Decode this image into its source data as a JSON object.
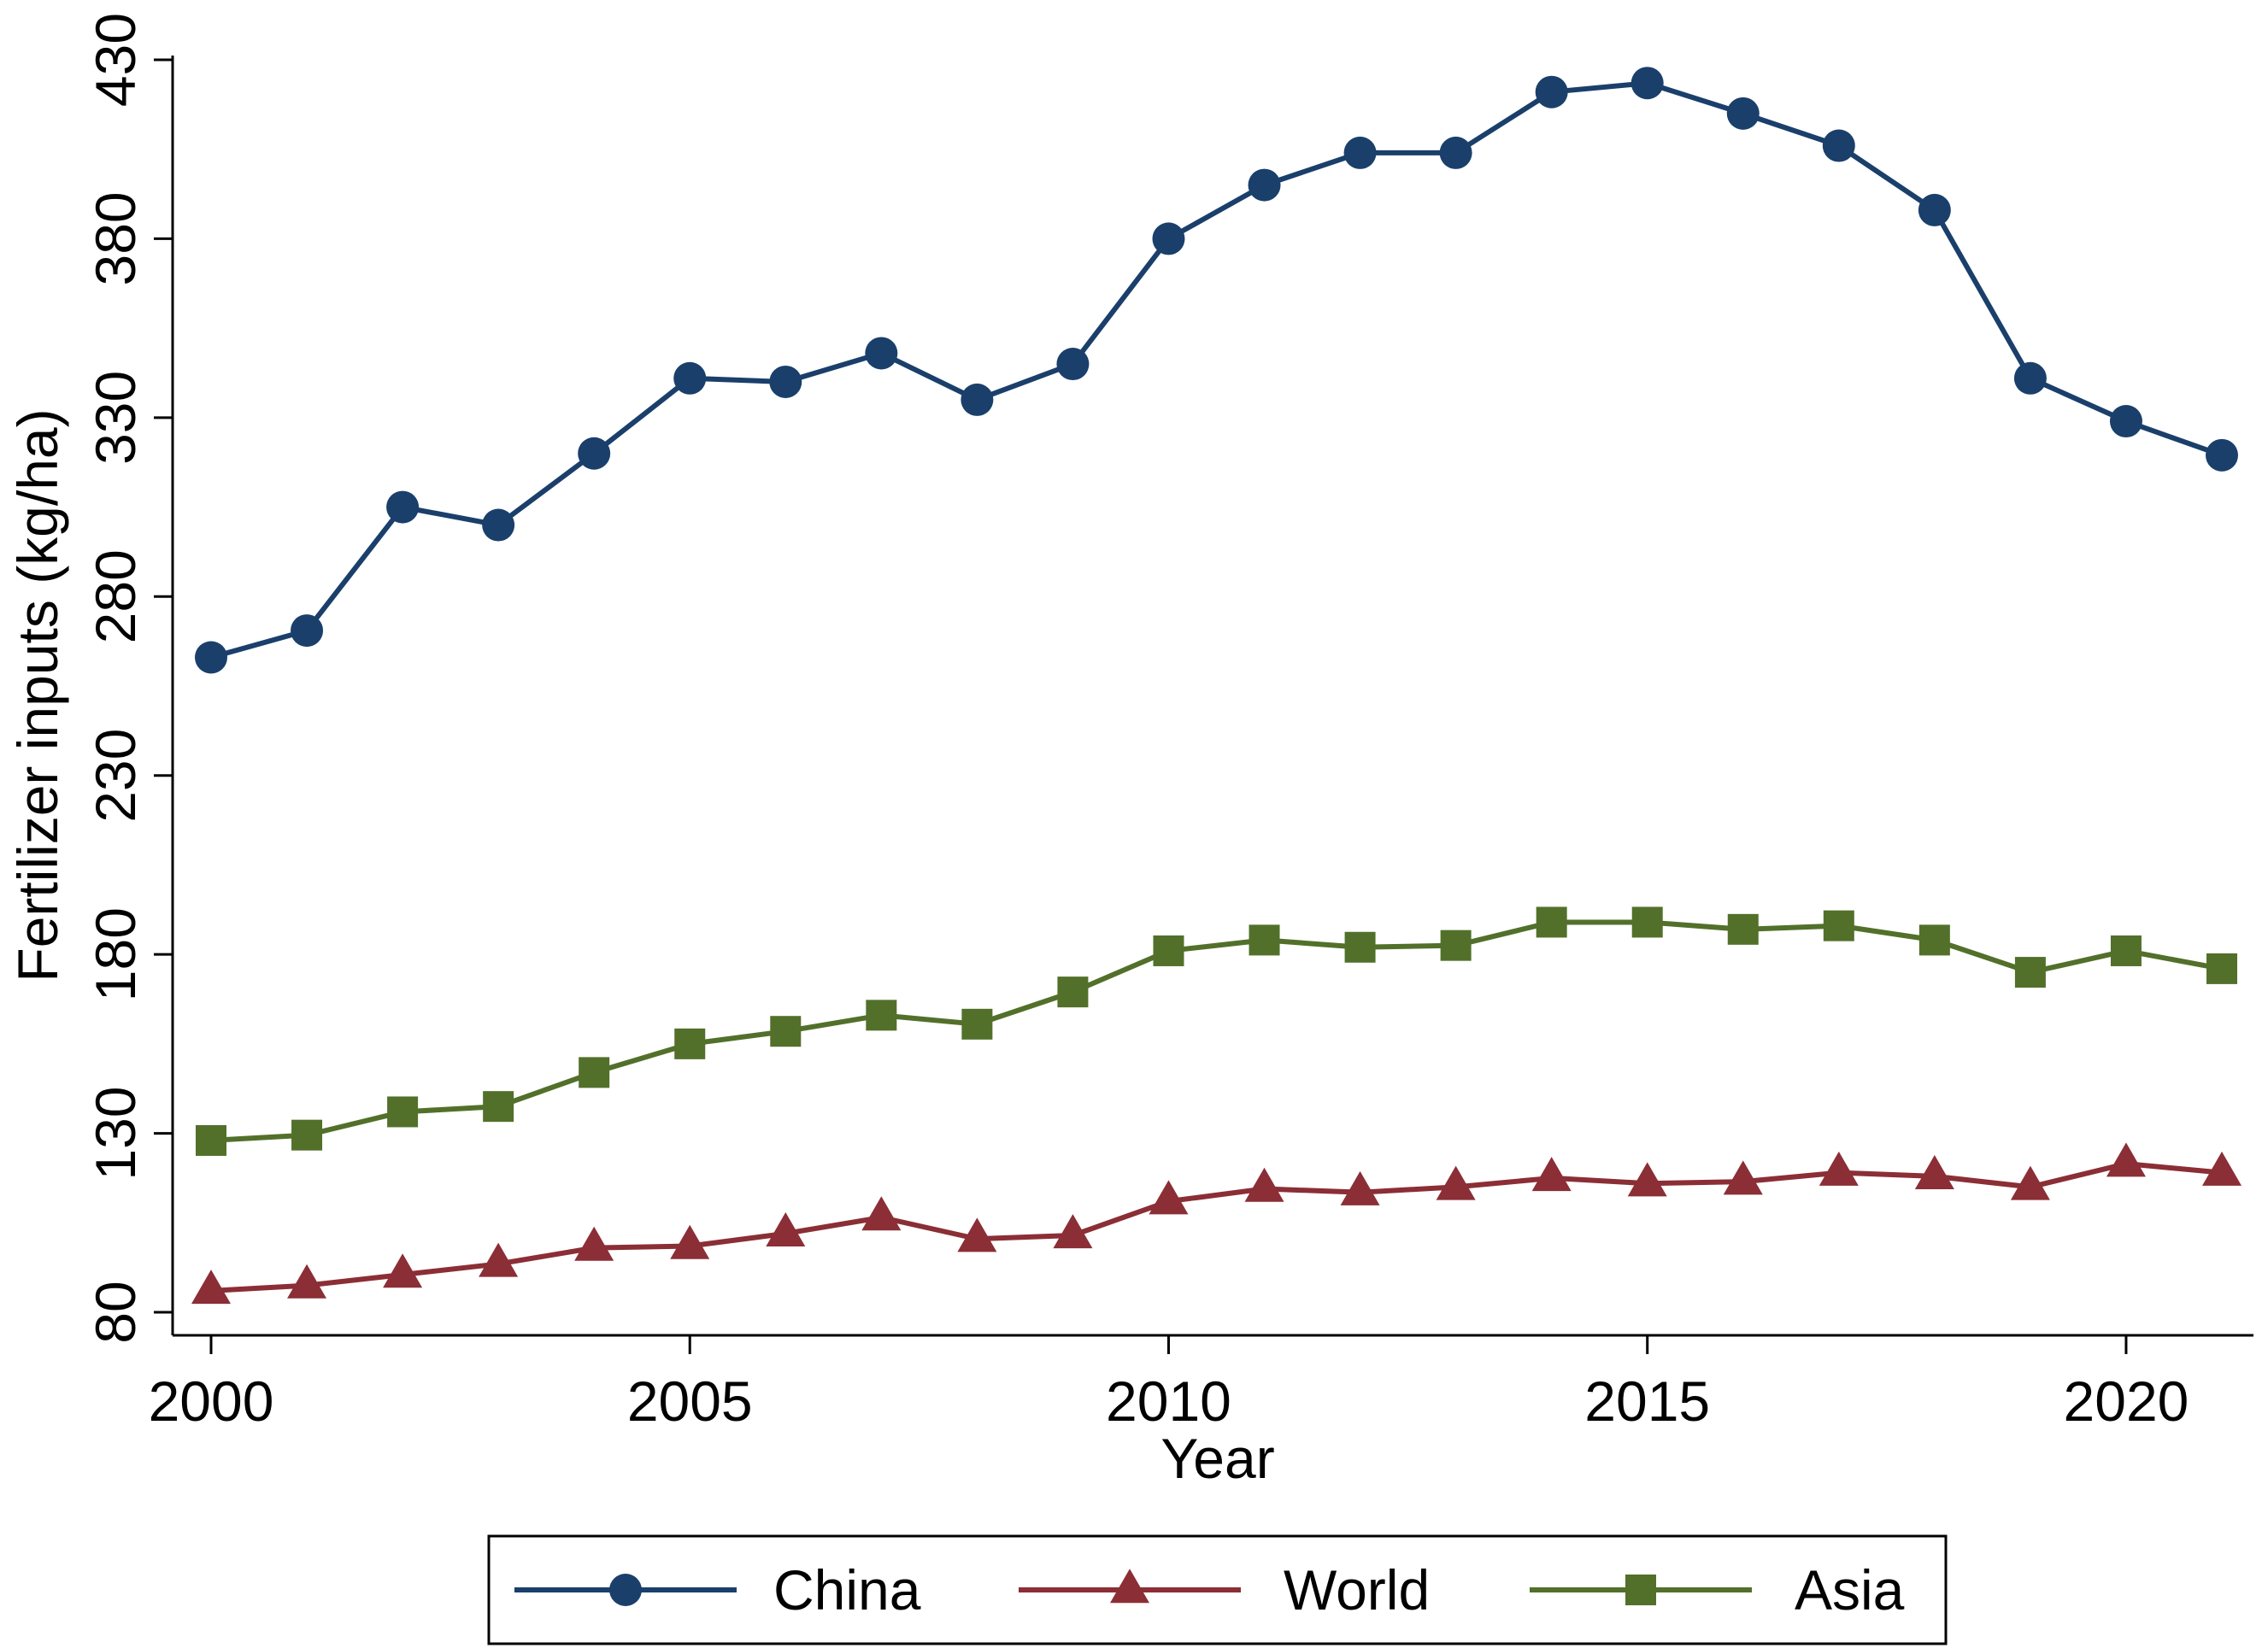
{
  "chart_data": {
    "type": "line",
    "title": "",
    "xlabel": "Year",
    "ylabel": "Fertilizer inputs (kg/ha)",
    "xlim": [
      1999.6,
      2021.4
    ],
    "ylim": [
      75,
      432
    ],
    "xticks": [
      2000,
      2005,
      2010,
      2015,
      2020
    ],
    "yticks": [
      80,
      130,
      180,
      230,
      280,
      330,
      380,
      430
    ],
    "x": [
      2000,
      2001,
      2002,
      2003,
      2004,
      2005,
      2006,
      2007,
      2008,
      2009,
      2010,
      2011,
      2012,
      2013,
      2014,
      2015,
      2016,
      2017,
      2018,
      2019,
      2020,
      2021
    ],
    "series": [
      {
        "name": "China",
        "color": "#1a3f6b",
        "marker": "circle",
        "values": [
          263,
          270.5,
          305,
          300,
          320,
          341,
          340,
          348,
          335,
          345,
          380,
          395,
          404,
          404,
          421,
          423.5,
          415,
          406,
          388,
          341,
          329,
          319.5
        ]
      },
      {
        "name": "World",
        "color": "#8b2e35",
        "marker": "triangle",
        "values": [
          86,
          87.5,
          90.5,
          93.5,
          98,
          98.5,
          102,
          106.5,
          100.5,
          101.5,
          111,
          114.5,
          113.5,
          115,
          117.5,
          116,
          116.5,
          119,
          118,
          115,
          121.5,
          119
        ]
      },
      {
        "name": "Asia",
        "color": "#52702a",
        "marker": "square",
        "values": [
          128,
          129.5,
          136,
          137.5,
          147,
          155,
          158.5,
          163,
          160.5,
          169.5,
          181,
          184,
          182,
          182.5,
          189,
          189,
          187,
          188,
          184,
          175,
          181,
          176
        ]
      }
    ],
    "legend": {
      "placement": "bottom-center",
      "entries": [
        "China",
        "World",
        "Asia"
      ]
    },
    "grid": false
  }
}
